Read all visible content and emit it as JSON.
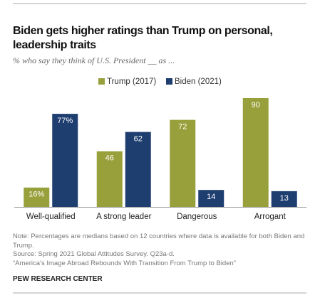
{
  "chart_data": {
    "type": "bar",
    "title": "Biden gets higher ratings than Trump on personal, leadership traits",
    "subtitle": "% who say they think of U.S. President __ as ...",
    "categories": [
      "Well-qualified",
      "A strong leader",
      "Dangerous",
      "Arrogant"
    ],
    "series": [
      {
        "name": "Trump (2017)",
        "color": "#98a03c",
        "values": [
          16,
          46,
          72,
          90
        ],
        "value_labels": [
          "16%",
          "46",
          "72",
          "90"
        ]
      },
      {
        "name": "Biden (2021)",
        "color": "#1f3e70",
        "values": [
          77,
          62,
          14,
          13
        ],
        "value_labels": [
          "77%",
          "62",
          "14",
          "13"
        ]
      }
    ],
    "notes": [
      "Note: Percentages are medians based on 12 countries where data is available for both Biden and Trump.",
      "Source: Spring 2021 Global Attitudes Survey. Q23a-d.",
      "“America’s Image Abroad Rebounds With Transition From Trump to Biden”"
    ],
    "source": "PEW RESEARCH CENTER"
  }
}
